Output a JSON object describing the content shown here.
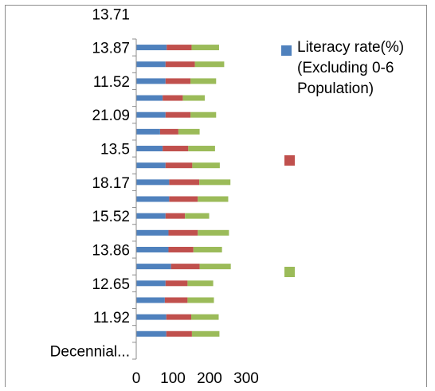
{
  "chart_data": {
    "type": "bar",
    "orientation": "horizontal",
    "stacked": true,
    "xlim": [
      0,
      300
    ],
    "x_ticks": [
      0,
      100,
      200,
      300
    ],
    "y_tick_labels": [
      "Decennial...",
      "11.92",
      "12.65",
      "13.86",
      "15.52",
      "18.17",
      "13.5",
      "21.09",
      "11.52",
      "13.87",
      "13.71"
    ],
    "categories_count": 19,
    "series": [
      {
        "name": "Literacy rate(%) (Excluding 0-6 Population)",
        "color": "#4f81bd",
        "values": [
          0,
          82,
          82,
          78,
          80,
          95,
          88,
          88,
          80,
          90,
          90,
          80,
          72,
          65,
          80,
          72,
          80,
          80,
          83
        ]
      },
      {
        "name": "",
        "color": "#c0504d",
        "values": [
          0,
          70,
          68,
          62,
          60,
          78,
          68,
          80,
          53,
          78,
          82,
          73,
          70,
          50,
          68,
          55,
          68,
          80,
          68
        ]
      },
      {
        "name": "",
        "color": "#9bbb59",
        "values": [
          0,
          75,
          75,
          72,
          70,
          85,
          78,
          85,
          66,
          83,
          85,
          75,
          73,
          58,
          70,
          60,
          70,
          80,
          75
        ]
      }
    ],
    "legend_position": "right",
    "grid": false
  }
}
